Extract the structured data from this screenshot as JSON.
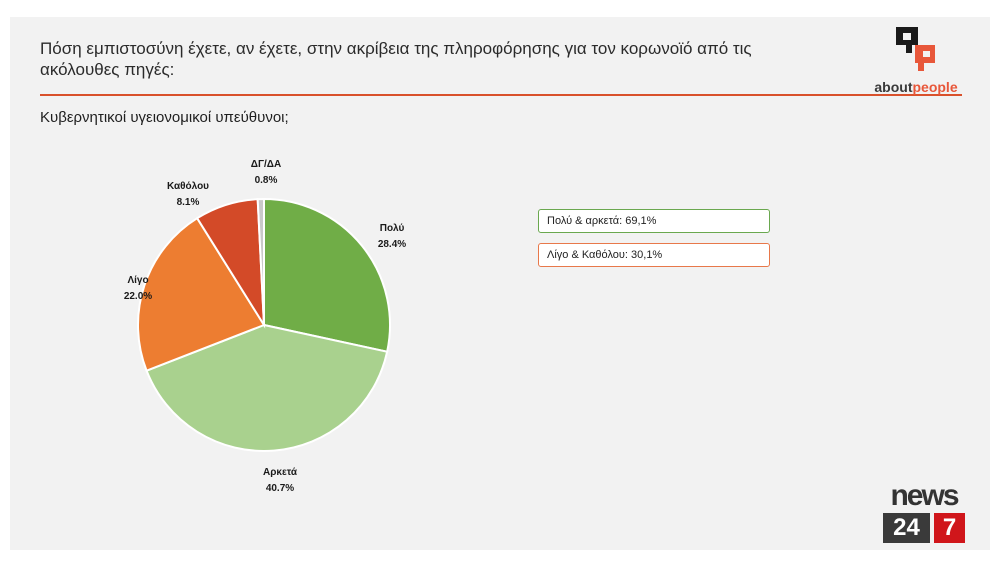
{
  "header": {
    "question": "Πόση εμπιστοσύνη έχετε, αν έχετε, στην ακρίβεια της πληροφόρησης για τον κορωνοϊό από τις ακόλουθες πηγές:",
    "subtitle": "Κυβερνητικοί υγειονομικοί υπεύθυνοι;",
    "brand_prefix": "about",
    "brand_suffix": "people",
    "brand_accent": "#e8573a",
    "rule_color": "#d9512c"
  },
  "summary": {
    "positive": "Πολύ & αρκετά: 69,1%",
    "negative": "Λίγο & Καθόλου: 30,1%"
  },
  "footer_logo": {
    "word": "news",
    "num": "24",
    "num2": "7"
  },
  "chart_data": {
    "type": "pie",
    "title": "",
    "slices": [
      {
        "label": "Πολύ",
        "value": 28.4,
        "display": "28.4%",
        "color": "#70ad47"
      },
      {
        "label": "Αρκετά",
        "value": 40.7,
        "display": "40.7%",
        "color": "#a9d18e"
      },
      {
        "label": "Λίγο",
        "value": 22.0,
        "display": "22.0%",
        "color": "#ed7d31"
      },
      {
        "label": "Καθόλου",
        "value": 8.1,
        "display": "8.1%",
        "color": "#d34a28"
      },
      {
        "label": "ΔΓ/ΔΑ",
        "value": 0.8,
        "display": "0.8%",
        "color": "#c9c9c9"
      }
    ]
  }
}
